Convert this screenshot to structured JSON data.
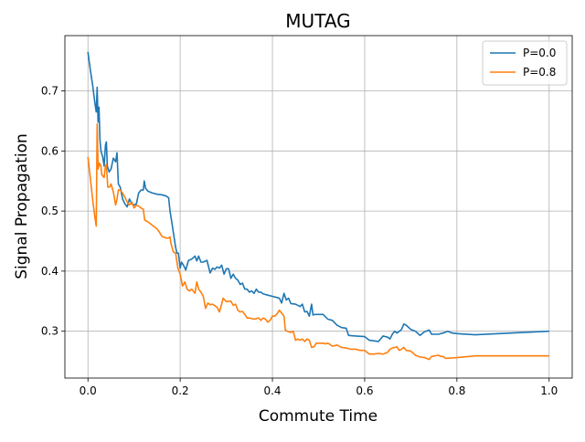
{
  "chart_data": {
    "type": "line",
    "title": "MUTAG",
    "xlabel": "Commute Time",
    "ylabel": "Signal Propagation",
    "xlim": [
      -0.05,
      1.05
    ],
    "ylim": [
      0.222,
      0.792
    ],
    "xticks": [
      0.0,
      0.2,
      0.4,
      0.6,
      0.8,
      1.0
    ],
    "xtick_labels": [
      "0.0",
      "0.2",
      "0.4",
      "0.6",
      "0.8",
      "1.0"
    ],
    "yticks": [
      0.3,
      0.4,
      0.5,
      0.6,
      0.7
    ],
    "ytick_labels": [
      "0.3",
      "0.4",
      "0.5",
      "0.6",
      "0.7"
    ],
    "grid": true,
    "legend_position": "top-right",
    "series": [
      {
        "name": "P=0.0",
        "color": "#1f77b4",
        "points": [
          [
            0.0,
            0.765
          ],
          [
            0.005,
            0.735
          ],
          [
            0.01,
            0.71
          ],
          [
            0.015,
            0.68
          ],
          [
            0.018,
            0.665
          ],
          [
            0.02,
            0.706
          ],
          [
            0.022,
            0.648
          ],
          [
            0.024,
            0.673
          ],
          [
            0.026,
            0.62
          ],
          [
            0.028,
            0.6
          ],
          [
            0.032,
            0.59
          ],
          [
            0.035,
            0.575
          ],
          [
            0.038,
            0.61
          ],
          [
            0.04,
            0.615
          ],
          [
            0.042,
            0.575
          ],
          [
            0.046,
            0.565
          ],
          [
            0.05,
            0.57
          ],
          [
            0.055,
            0.588
          ],
          [
            0.06,
            0.582
          ],
          [
            0.063,
            0.597
          ],
          [
            0.066,
            0.545
          ],
          [
            0.07,
            0.54
          ],
          [
            0.075,
            0.52
          ],
          [
            0.08,
            0.512
          ],
          [
            0.085,
            0.507
          ],
          [
            0.09,
            0.52
          ],
          [
            0.095,
            0.512
          ],
          [
            0.1,
            0.51
          ],
          [
            0.105,
            0.512
          ],
          [
            0.11,
            0.53
          ],
          [
            0.115,
            0.535
          ],
          [
            0.12,
            0.535
          ],
          [
            0.122,
            0.55
          ],
          [
            0.125,
            0.538
          ],
          [
            0.13,
            0.533
          ],
          [
            0.14,
            0.53
          ],
          [
            0.15,
            0.528
          ],
          [
            0.16,
            0.527
          ],
          [
            0.17,
            0.525
          ],
          [
            0.175,
            0.522
          ],
          [
            0.178,
            0.5
          ],
          [
            0.182,
            0.48
          ],
          [
            0.186,
            0.46
          ],
          [
            0.19,
            0.44
          ],
          [
            0.193,
            0.43
          ],
          [
            0.196,
            0.43
          ],
          [
            0.2,
            0.405
          ],
          [
            0.203,
            0.415
          ],
          [
            0.207,
            0.41
          ],
          [
            0.212,
            0.402
          ],
          [
            0.218,
            0.418
          ],
          [
            0.225,
            0.42
          ],
          [
            0.232,
            0.425
          ],
          [
            0.236,
            0.417
          ],
          [
            0.24,
            0.425
          ],
          [
            0.245,
            0.415
          ],
          [
            0.25,
            0.415
          ],
          [
            0.258,
            0.418
          ],
          [
            0.265,
            0.397
          ],
          [
            0.27,
            0.405
          ],
          [
            0.275,
            0.403
          ],
          [
            0.28,
            0.407
          ],
          [
            0.285,
            0.405
          ],
          [
            0.29,
            0.41
          ],
          [
            0.295,
            0.395
          ],
          [
            0.3,
            0.404
          ],
          [
            0.305,
            0.404
          ],
          [
            0.31,
            0.388
          ],
          [
            0.315,
            0.395
          ],
          [
            0.32,
            0.388
          ],
          [
            0.325,
            0.385
          ],
          [
            0.33,
            0.378
          ],
          [
            0.335,
            0.38
          ],
          [
            0.34,
            0.37
          ],
          [
            0.345,
            0.37
          ],
          [
            0.35,
            0.365
          ],
          [
            0.355,
            0.367
          ],
          [
            0.36,
            0.363
          ],
          [
            0.365,
            0.37
          ],
          [
            0.37,
            0.365
          ],
          [
            0.375,
            0.365
          ],
          [
            0.38,
            0.362
          ],
          [
            0.39,
            0.36
          ],
          [
            0.4,
            0.358
          ],
          [
            0.41,
            0.356
          ],
          [
            0.415,
            0.355
          ],
          [
            0.42,
            0.347
          ],
          [
            0.425,
            0.363
          ],
          [
            0.43,
            0.352
          ],
          [
            0.435,
            0.355
          ],
          [
            0.44,
            0.346
          ],
          [
            0.45,
            0.345
          ],
          [
            0.46,
            0.341
          ],
          [
            0.465,
            0.345
          ],
          [
            0.47,
            0.332
          ],
          [
            0.475,
            0.333
          ],
          [
            0.48,
            0.325
          ],
          [
            0.485,
            0.345
          ],
          [
            0.488,
            0.327
          ],
          [
            0.492,
            0.328
          ],
          [
            0.5,
            0.328
          ],
          [
            0.51,
            0.328
          ],
          [
            0.52,
            0.32
          ],
          [
            0.53,
            0.318
          ],
          [
            0.54,
            0.31
          ],
          [
            0.55,
            0.306
          ],
          [
            0.56,
            0.305
          ],
          [
            0.565,
            0.293
          ],
          [
            0.58,
            0.292
          ],
          [
            0.6,
            0.291
          ],
          [
            0.61,
            0.285
          ],
          [
            0.63,
            0.283
          ],
          [
            0.64,
            0.292
          ],
          [
            0.65,
            0.29
          ],
          [
            0.655,
            0.287
          ],
          [
            0.66,
            0.295
          ],
          [
            0.665,
            0.3
          ],
          [
            0.67,
            0.297
          ],
          [
            0.675,
            0.3
          ],
          [
            0.68,
            0.303
          ],
          [
            0.685,
            0.312
          ],
          [
            0.69,
            0.31
          ],
          [
            0.7,
            0.303
          ],
          [
            0.71,
            0.3
          ],
          [
            0.72,
            0.293
          ],
          [
            0.73,
            0.299
          ],
          [
            0.74,
            0.302
          ],
          [
            0.745,
            0.295
          ],
          [
            0.76,
            0.295
          ],
          [
            0.77,
            0.297
          ],
          [
            0.78,
            0.3
          ],
          [
            0.79,
            0.297
          ],
          [
            0.8,
            0.296
          ],
          [
            0.84,
            0.294
          ],
          [
            1.0,
            0.3
          ]
        ]
      },
      {
        "name": "P=0.8",
        "color": "#ff7f0e",
        "points": [
          [
            0.0,
            0.59
          ],
          [
            0.005,
            0.555
          ],
          [
            0.01,
            0.52
          ],
          [
            0.015,
            0.49
          ],
          [
            0.018,
            0.475
          ],
          [
            0.02,
            0.645
          ],
          [
            0.022,
            0.57
          ],
          [
            0.025,
            0.58
          ],
          [
            0.028,
            0.575
          ],
          [
            0.03,
            0.56
          ],
          [
            0.035,
            0.556
          ],
          [
            0.038,
            0.575
          ],
          [
            0.04,
            0.578
          ],
          [
            0.043,
            0.54
          ],
          [
            0.047,
            0.54
          ],
          [
            0.05,
            0.545
          ],
          [
            0.055,
            0.532
          ],
          [
            0.06,
            0.51
          ],
          [
            0.063,
            0.52
          ],
          [
            0.066,
            0.535
          ],
          [
            0.07,
            0.535
          ],
          [
            0.075,
            0.53
          ],
          [
            0.08,
            0.523
          ],
          [
            0.085,
            0.515
          ],
          [
            0.09,
            0.51
          ],
          [
            0.095,
            0.515
          ],
          [
            0.1,
            0.505
          ],
          [
            0.105,
            0.51
          ],
          [
            0.11,
            0.508
          ],
          [
            0.115,
            0.505
          ],
          [
            0.12,
            0.503
          ],
          [
            0.123,
            0.485
          ],
          [
            0.13,
            0.482
          ],
          [
            0.14,
            0.476
          ],
          [
            0.15,
            0.47
          ],
          [
            0.155,
            0.465
          ],
          [
            0.16,
            0.458
          ],
          [
            0.17,
            0.455
          ],
          [
            0.175,
            0.455
          ],
          [
            0.178,
            0.457
          ],
          [
            0.18,
            0.446
          ],
          [
            0.185,
            0.432
          ],
          [
            0.19,
            0.43
          ],
          [
            0.195,
            0.405
          ],
          [
            0.2,
            0.395
          ],
          [
            0.205,
            0.375
          ],
          [
            0.21,
            0.382
          ],
          [
            0.215,
            0.37
          ],
          [
            0.22,
            0.367
          ],
          [
            0.225,
            0.37
          ],
          [
            0.232,
            0.363
          ],
          [
            0.236,
            0.382
          ],
          [
            0.24,
            0.37
          ],
          [
            0.245,
            0.365
          ],
          [
            0.25,
            0.358
          ],
          [
            0.255,
            0.338
          ],
          [
            0.26,
            0.347
          ],
          [
            0.265,
            0.344
          ],
          [
            0.27,
            0.345
          ],
          [
            0.28,
            0.34
          ],
          [
            0.285,
            0.332
          ],
          [
            0.29,
            0.345
          ],
          [
            0.293,
            0.355
          ],
          [
            0.3,
            0.349
          ],
          [
            0.305,
            0.35
          ],
          [
            0.31,
            0.35
          ],
          [
            0.315,
            0.343
          ],
          [
            0.32,
            0.345
          ],
          [
            0.325,
            0.335
          ],
          [
            0.33,
            0.332
          ],
          [
            0.335,
            0.333
          ],
          [
            0.34,
            0.328
          ],
          [
            0.345,
            0.322
          ],
          [
            0.35,
            0.322
          ],
          [
            0.36,
            0.32
          ],
          [
            0.37,
            0.322
          ],
          [
            0.375,
            0.318
          ],
          [
            0.38,
            0.322
          ],
          [
            0.385,
            0.32
          ],
          [
            0.39,
            0.315
          ],
          [
            0.395,
            0.318
          ],
          [
            0.4,
            0.325
          ],
          [
            0.405,
            0.325
          ],
          [
            0.41,
            0.329
          ],
          [
            0.415,
            0.335
          ],
          [
            0.42,
            0.33
          ],
          [
            0.425,
            0.325
          ],
          [
            0.428,
            0.302
          ],
          [
            0.432,
            0.3
          ],
          [
            0.44,
            0.298
          ],
          [
            0.445,
            0.3
          ],
          [
            0.45,
            0.285
          ],
          [
            0.455,
            0.287
          ],
          [
            0.46,
            0.285
          ],
          [
            0.465,
            0.287
          ],
          [
            0.47,
            0.283
          ],
          [
            0.475,
            0.287
          ],
          [
            0.48,
            0.285
          ],
          [
            0.485,
            0.273
          ],
          [
            0.49,
            0.274
          ],
          [
            0.495,
            0.28
          ],
          [
            0.5,
            0.28
          ],
          [
            0.51,
            0.28
          ],
          [
            0.515,
            0.279
          ],
          [
            0.52,
            0.28
          ],
          [
            0.525,
            0.278
          ],
          [
            0.53,
            0.275
          ],
          [
            0.54,
            0.277
          ],
          [
            0.55,
            0.273
          ],
          [
            0.56,
            0.272
          ],
          [
            0.57,
            0.27
          ],
          [
            0.58,
            0.27
          ],
          [
            0.59,
            0.268
          ],
          [
            0.6,
            0.268
          ],
          [
            0.61,
            0.262
          ],
          [
            0.62,
            0.262
          ],
          [
            0.63,
            0.263
          ],
          [
            0.64,
            0.262
          ],
          [
            0.65,
            0.265
          ],
          [
            0.655,
            0.27
          ],
          [
            0.66,
            0.272
          ],
          [
            0.67,
            0.274
          ],
          [
            0.675,
            0.268
          ],
          [
            0.68,
            0.27
          ],
          [
            0.685,
            0.273
          ],
          [
            0.69,
            0.268
          ],
          [
            0.7,
            0.267
          ],
          [
            0.71,
            0.26
          ],
          [
            0.72,
            0.257
          ],
          [
            0.73,
            0.256
          ],
          [
            0.74,
            0.253
          ],
          [
            0.745,
            0.258
          ],
          [
            0.76,
            0.26
          ],
          [
            0.765,
            0.258
          ],
          [
            0.77,
            0.258
          ],
          [
            0.775,
            0.255
          ],
          [
            0.78,
            0.255
          ],
          [
            0.8,
            0.256
          ],
          [
            0.84,
            0.259
          ],
          [
            1.0,
            0.259
          ]
        ]
      }
    ]
  }
}
